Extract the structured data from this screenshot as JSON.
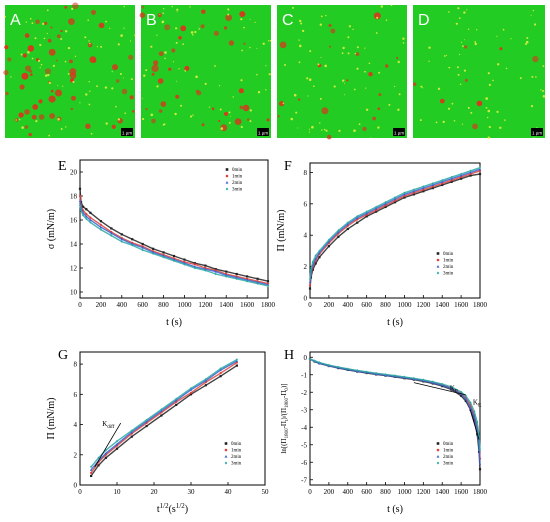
{
  "colors": {
    "mic_green": "#22cc22",
    "mic_red": "#e0301e",
    "mic_yellow": "#f2f244",
    "series": [
      "#222222",
      "#e0403a",
      "#3a5fcd",
      "#2ca8a8"
    ]
  },
  "micrographs": [
    {
      "letter": "A",
      "scale": "1 µm",
      "red_spots": 60
    },
    {
      "letter": "B",
      "scale": "1 µm",
      "red_spots": 40
    },
    {
      "letter": "C",
      "scale": "1 µm",
      "red_spots": 20
    },
    {
      "letter": "D",
      "scale": "1 µm",
      "red_spots": 8
    }
  ],
  "legend_labels": [
    "0min",
    "1min",
    "2min",
    "3min"
  ],
  "chart_data": [
    {
      "panel": "E",
      "type": "scatter",
      "xlabel": "t (s)",
      "ylabel": "σ (mN/m)",
      "xlim": [
        0,
        1800
      ],
      "ylim": [
        9.5,
        21
      ],
      "xticks": [
        0,
        200,
        400,
        600,
        800,
        1000,
        1200,
        1400,
        1600,
        1800
      ],
      "yticks": [
        10,
        12,
        14,
        16,
        18,
        20
      ],
      "legend": "top-right",
      "x": [
        0,
        10,
        30,
        60,
        100,
        200,
        300,
        400,
        500,
        600,
        700,
        800,
        900,
        1000,
        1100,
        1200,
        1300,
        1400,
        1500,
        1600,
        1700,
        1800
      ],
      "series": [
        {
          "name": "0min",
          "values": [
            18.6,
            17.5,
            17.1,
            16.9,
            16.6,
            15.9,
            15.3,
            14.8,
            14.4,
            14.0,
            13.6,
            13.3,
            13.0,
            12.7,
            12.4,
            12.2,
            11.9,
            11.7,
            11.5,
            11.3,
            11.1,
            10.9
          ]
        },
        {
          "name": "1min",
          "values": [
            18.0,
            17.2,
            16.8,
            16.5,
            16.2,
            15.6,
            15.0,
            14.5,
            14.1,
            13.8,
            13.4,
            13.1,
            12.8,
            12.5,
            12.3,
            12.0,
            11.8,
            11.5,
            11.3,
            11.1,
            10.9,
            10.7
          ]
        },
        {
          "name": "2min",
          "values": [
            17.6,
            17.0,
            16.6,
            16.3,
            16.0,
            15.4,
            14.9,
            14.4,
            14.0,
            13.7,
            13.3,
            13.0,
            12.7,
            12.4,
            12.1,
            11.9,
            11.7,
            11.4,
            11.2,
            11.0,
            10.8,
            10.6
          ]
        },
        {
          "name": "3min",
          "values": [
            17.2,
            16.8,
            16.4,
            16.1,
            15.8,
            15.2,
            14.7,
            14.2,
            13.9,
            13.5,
            13.2,
            12.9,
            12.6,
            12.3,
            12.0,
            11.8,
            11.5,
            11.3,
            11.1,
            10.9,
            10.7,
            10.5
          ]
        }
      ]
    },
    {
      "panel": "F",
      "type": "scatter",
      "xlabel": "t (s)",
      "ylabel": "Π (mN/m)",
      "xlim": [
        0,
        1800
      ],
      "ylim": [
        0,
        8.6
      ],
      "xticks": [
        0,
        200,
        400,
        600,
        800,
        1000,
        1200,
        1400,
        1600,
        1800
      ],
      "yticks": [
        0,
        2,
        4,
        6,
        8
      ],
      "legend": "bottom-right",
      "x": [
        0,
        10,
        30,
        60,
        100,
        200,
        300,
        400,
        500,
        600,
        700,
        800,
        900,
        1000,
        1100,
        1200,
        1300,
        1400,
        1500,
        1600,
        1700,
        1800
      ],
      "series": [
        {
          "name": "0min",
          "values": [
            0.6,
            1.3,
            1.8,
            2.2,
            2.6,
            3.3,
            3.9,
            4.4,
            4.8,
            5.2,
            5.5,
            5.8,
            6.1,
            6.4,
            6.6,
            6.8,
            7.0,
            7.2,
            7.4,
            7.6,
            7.8,
            7.9
          ]
        },
        {
          "name": "1min",
          "values": [
            0.8,
            1.5,
            2.0,
            2.4,
            2.8,
            3.5,
            4.1,
            4.6,
            5.0,
            5.3,
            5.6,
            5.9,
            6.2,
            6.5,
            6.7,
            6.9,
            7.1,
            7.3,
            7.5,
            7.7,
            7.9,
            8.1
          ]
        },
        {
          "name": "2min",
          "values": [
            1.0,
            1.6,
            2.1,
            2.5,
            2.9,
            3.6,
            4.2,
            4.7,
            5.1,
            5.4,
            5.7,
            6.0,
            6.3,
            6.6,
            6.8,
            7.0,
            7.2,
            7.4,
            7.6,
            7.8,
            8.0,
            8.2
          ]
        },
        {
          "name": "3min",
          "values": [
            1.2,
            1.8,
            2.3,
            2.7,
            3.0,
            3.7,
            4.3,
            4.8,
            5.2,
            5.5,
            5.8,
            6.1,
            6.4,
            6.7,
            6.9,
            7.1,
            7.3,
            7.5,
            7.7,
            7.9,
            8.1,
            8.3
          ]
        }
      ]
    },
    {
      "panel": "G",
      "type": "scatter",
      "xlabel": "t1/2(s1/2)",
      "ylabel": "Π (mN/m)",
      "xlim": [
        0,
        50
      ],
      "ylim": [
        0,
        8.8
      ],
      "xticks": [
        0,
        10,
        20,
        30,
        40,
        50
      ],
      "yticks": [
        0,
        2,
        4,
        6,
        8
      ],
      "legend": "bottom-right",
      "annotation": {
        "text": "Kdiff",
        "x": 6,
        "y": 3.9
      },
      "fit_line": {
        "x": [
          4,
          11
        ],
        "y": [
          1.2,
          4.1
        ]
      },
      "x": [
        3,
        5,
        7,
        10,
        14,
        18,
        22,
        26,
        30,
        34,
        38,
        42.4
      ],
      "series": [
        {
          "name": "0min",
          "values": [
            0.6,
            1.3,
            1.8,
            2.4,
            3.2,
            3.9,
            4.6,
            5.3,
            6.0,
            6.6,
            7.2,
            7.9
          ]
        },
        {
          "name": "1min",
          "values": [
            0.8,
            1.5,
            2.0,
            2.6,
            3.4,
            4.1,
            4.8,
            5.5,
            6.1,
            6.8,
            7.4,
            8.1
          ]
        },
        {
          "name": "2min",
          "values": [
            1.0,
            1.6,
            2.1,
            2.7,
            3.5,
            4.2,
            4.9,
            5.6,
            6.3,
            6.9,
            7.6,
            8.2
          ]
        },
        {
          "name": "3min",
          "values": [
            1.2,
            1.8,
            2.3,
            2.9,
            3.6,
            4.3,
            5.0,
            5.7,
            6.4,
            7.0,
            7.7,
            8.3
          ]
        }
      ]
    },
    {
      "panel": "H",
      "type": "scatter",
      "xlabel": "t (s)",
      "ylabel": "ln[(Π1800-Πt)/(Π1800-Π0)]",
      "xlim": [
        0,
        1800
      ],
      "ylim": [
        -7.3,
        0.3
      ],
      "xticks": [
        0,
        200,
        400,
        600,
        800,
        1000,
        1200,
        1400,
        1600,
        1800
      ],
      "yticks": [
        0,
        -1,
        -2,
        -3,
        -4,
        -5,
        -6,
        -7
      ],
      "legend": "bottom-right",
      "annotations": [
        {
          "text": "KP",
          "x": 1480,
          "y": -1.9
        },
        {
          "text": "KR",
          "x": 1725,
          "y": -2.7
        }
      ],
      "fit_lines": [
        {
          "x": [
            1100,
            1650
          ],
          "y": [
            -1.45,
            -2.15
          ]
        },
        {
          "x": [
            1695,
            1790
          ],
          "y": [
            -3.0,
            -4.7
          ]
        }
      ],
      "x": [
        0,
        50,
        100,
        200,
        300,
        400,
        500,
        600,
        700,
        800,
        900,
        1000,
        1100,
        1200,
        1300,
        1400,
        1500,
        1600,
        1650,
        1700,
        1740,
        1770,
        1790,
        1800
      ],
      "series": [
        {
          "name": "0min",
          "values": [
            -0.1,
            -0.25,
            -0.35,
            -0.5,
            -0.62,
            -0.72,
            -0.82,
            -0.9,
            -0.98,
            -1.05,
            -1.12,
            -1.2,
            -1.28,
            -1.38,
            -1.5,
            -1.65,
            -1.85,
            -2.2,
            -2.5,
            -3.0,
            -3.6,
            -4.4,
            -5.4,
            -6.4
          ]
        },
        {
          "name": "1min",
          "values": [
            -0.1,
            -0.22,
            -0.32,
            -0.47,
            -0.58,
            -0.68,
            -0.78,
            -0.86,
            -0.94,
            -1.01,
            -1.08,
            -1.15,
            -1.23,
            -1.32,
            -1.43,
            -1.57,
            -1.75,
            -2.05,
            -2.3,
            -2.75,
            -3.3,
            -4.0,
            -4.9,
            -5.8
          ]
        },
        {
          "name": "2min",
          "values": [
            -0.1,
            -0.24,
            -0.34,
            -0.49,
            -0.6,
            -0.7,
            -0.8,
            -0.88,
            -0.96,
            -1.03,
            -1.1,
            -1.17,
            -1.25,
            -1.34,
            -1.46,
            -1.6,
            -1.8,
            -2.1,
            -2.4,
            -2.9,
            -3.4,
            -4.2,
            -5.1,
            -6.1
          ]
        },
        {
          "name": "3min",
          "values": [
            -0.1,
            -0.2,
            -0.3,
            -0.45,
            -0.56,
            -0.66,
            -0.75,
            -0.83,
            -0.91,
            -0.98,
            -1.05,
            -1.12,
            -1.2,
            -1.29,
            -1.4,
            -1.53,
            -1.7,
            -1.98,
            -2.2,
            -2.6,
            -3.1,
            -3.7,
            -4.5,
            -5.3
          ]
        }
      ]
    }
  ]
}
